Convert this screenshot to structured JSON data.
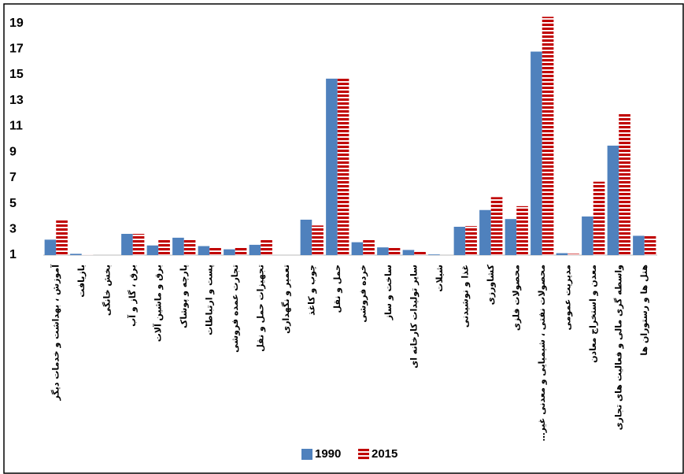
{
  "chart_data": {
    "type": "bar",
    "categories": [
      "آموزش ، بهداشت و خدمات دیگر",
      "بازیافت",
      "بخش خانگی",
      "برق ، گاز و آب",
      "برق و ماشین آلات",
      "پارچه و پوشاک",
      "پست و ارتباطات",
      "تجارت عمده فروشی",
      "تجهیزات حمل و نقل",
      "تعمیر و نگهداری",
      "چوب و کاغذ",
      "حمل و نقل",
      "خرده فروشی",
      "ساخت و ساز",
      "سایر تولیدات کارخانه ای",
      "شیلات",
      "غذا و نوشیدنی",
      "کشاورزی",
      "محصولات فلزی",
      "محصولات نفتی ، شیمیایی و معدنی غیر…",
      "مدیریت عمومی",
      "معدن و استخراج معادن",
      "واسطه گری مالی و فعالیت های تجاری",
      "هتل ها و رستوران ها"
    ],
    "series": [
      {
        "name": "1990",
        "color": "#4f81bd",
        "pattern": "solid",
        "values": [
          2.2,
          1.1,
          1,
          2.65,
          1.75,
          2.35,
          1.7,
          1.45,
          1.8,
          1,
          3.75,
          14.7,
          2.0,
          1.6,
          1.4,
          1.05,
          3.2,
          4.5,
          3.8,
          16.8,
          1.15,
          4.0,
          9.5,
          2.5
        ]
      },
      {
        "name": "2015",
        "color": "#c00000",
        "pattern": "striped",
        "values": [
          3.7,
          1.05,
          1,
          2.65,
          2.2,
          2.2,
          1.65,
          1.55,
          2.2,
          1,
          3.3,
          14.7,
          2.2,
          1.65,
          1.3,
          1.0,
          3.25,
          5.5,
          4.8,
          19.5,
          1.1,
          6.7,
          12.0,
          2.5
        ]
      }
    ],
    "ylim": [
      1,
      20.5
    ],
    "yticks": [
      1,
      3,
      5,
      7,
      9,
      11,
      13,
      15,
      17,
      19
    ],
    "grid": false,
    "legend": "bottom"
  }
}
